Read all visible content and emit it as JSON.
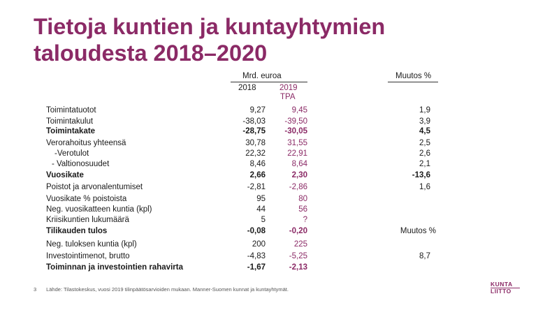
{
  "title": {
    "line1": "Tietoja kuntien ja kuntayhtymien",
    "line2": "taloudesta 2018–2020"
  },
  "header": {
    "unit": "Mrd. euroa",
    "col2018": "2018",
    "col2019": "2019",
    "col2019_sub": "TPA",
    "change": "Muutos %"
  },
  "rows": [
    {
      "label": "Toimintatuotot",
      "v2018": "9,27",
      "v2019": "9,45",
      "change": "1,9",
      "bold": false
    },
    {
      "label": "Toimintakulut",
      "v2018": "-38,03",
      "v2019": "-39,50",
      "change": "3,9",
      "bold": false
    },
    {
      "label": "Toimintakate",
      "v2018": "-28,75",
      "v2019": "-30,05",
      "change": "4,5",
      "bold": true
    },
    {
      "label": "Verorahoitus yhteensä",
      "v2018": "30,78",
      "v2019": "31,55",
      "change": "2,5",
      "bold": false
    },
    {
      "label": "-Verotulot",
      "v2018": "22,32",
      "v2019": "22,91",
      "change": "2,6",
      "bold": false
    },
    {
      "label": "- Valtionosuudet",
      "v2018": "8,46",
      "v2019": "8,64",
      "change": "2,1",
      "bold": false
    },
    {
      "label": "Vuosikate",
      "v2018": "2,66",
      "v2019": "2,30",
      "change": "-13,6",
      "bold": true
    },
    {
      "label": "Poistot ja arvonalentumiset",
      "v2018": "-2,81",
      "v2019": "-2,86",
      "change": "1,6",
      "bold": false
    },
    {
      "label": "Vuosikate % poistoista",
      "v2018": "95",
      "v2019": "80",
      "change": "",
      "bold": false
    },
    {
      "label": "Neg. vuosikatteen kuntia (kpl)",
      "v2018": "44",
      "v2019": "56",
      "change": "",
      "bold": false
    },
    {
      "label": "Kriisikuntien lukumäärä",
      "v2018": "5",
      "v2019": "?",
      "change": "",
      "bold": false
    },
    {
      "label": "Tilikauden tulos",
      "v2018": "-0,08",
      "v2019": "-0,20",
      "change": "Muutos %",
      "bold": true
    },
    {
      "label": "Neg. tuloksen kuntia (kpl)",
      "v2018": "200",
      "v2019": "225",
      "change": "",
      "bold": false
    },
    {
      "label": "Investointimenot, brutto",
      "v2018": "-4,83",
      "v2019": "-5,25",
      "change": "8,7",
      "bold": false
    },
    {
      "label": "Toiminnan ja investointien rahavirta",
      "v2018": "-1,67",
      "v2019": "-2,13",
      "change": "",
      "bold": true
    }
  ],
  "footer": {
    "page": "3",
    "source": "Lähde: Tilastokeskus, vuosi 2019 tilinpäätösarvioiden mukaan. Manner-Suomen kunnat ja kuntayhtymät."
  },
  "logo": {
    "line1": "KUNTA",
    "line2": "LIITTO"
  },
  "colors": {
    "accent": "#8b2a66"
  }
}
